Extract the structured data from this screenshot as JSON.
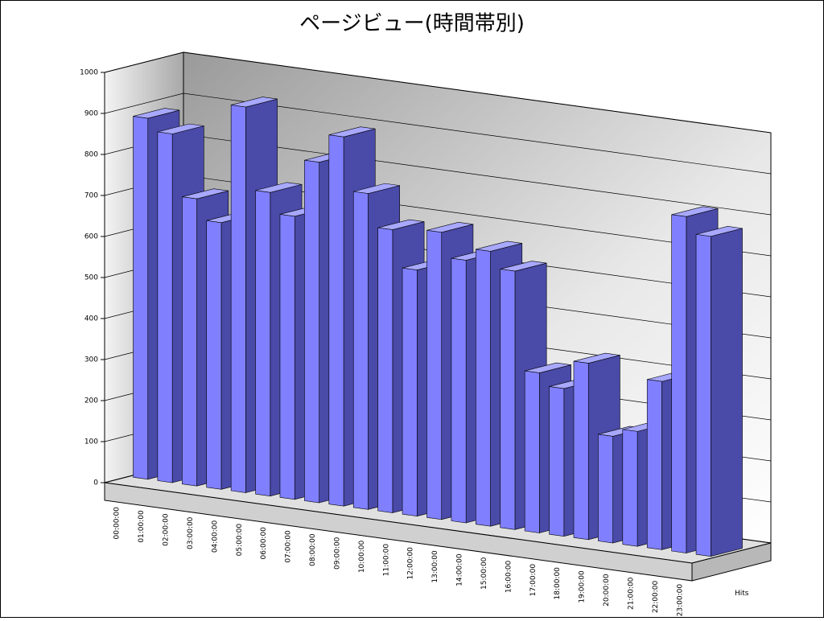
{
  "chart_data": {
    "type": "bar3d",
    "title": "ページビュー(時間帯別)",
    "categories": [
      "00:00:00",
      "01:00:00",
      "02:00:00",
      "03:00:00",
      "04:00:00",
      "05:00:00",
      "06:00:00",
      "07:00:00",
      "08:00:00",
      "09:00:00",
      "10:00:00",
      "11:00:00",
      "12:00:00",
      "13:00:00",
      "14:00:00",
      "15:00:00",
      "16:00:00",
      "17:00:00",
      "18:00:00",
      "19:00:00",
      "20:00:00",
      "21:00:00",
      "22:00:00",
      "23:00:00"
    ],
    "series": [
      {
        "name": "Hits",
        "color": "#8080ff",
        "values": [
          880,
          850,
          700,
          650,
          940,
          740,
          690,
          830,
          900,
          770,
          690,
          600,
          700,
          640,
          670,
          630,
          390,
          360,
          430,
          260,
          280,
          410,
          820,
          780
        ]
      }
    ],
    "ylim": [
      0,
      1000
    ],
    "yticks": [
      0,
      100,
      200,
      300,
      400,
      500,
      600,
      700,
      800,
      900,
      1000
    ],
    "grid": true
  }
}
